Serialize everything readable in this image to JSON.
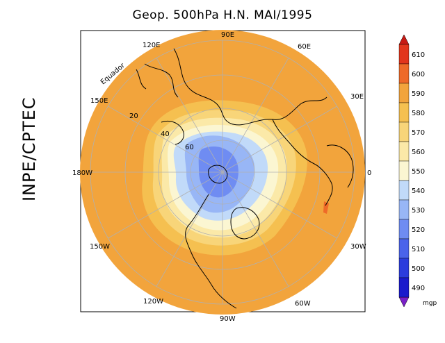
{
  "title": "Geop. 500hPa H.N. MAI/1995",
  "side_label": "INPE/CPTEC",
  "unit": "mgp",
  "equator_label": "Equador",
  "longitude_labels": [
    "90E",
    "60E",
    "30E",
    "0",
    "30W",
    "60W",
    "90W",
    "120W",
    "150W",
    "180W",
    "150E",
    "120E"
  ],
  "latitude_labels": [
    "20",
    "40",
    "60"
  ],
  "colorbar": {
    "levels": [
      "490",
      "500",
      "510",
      "520",
      "530",
      "540",
      "550",
      "560",
      "570",
      "580",
      "590",
      "600",
      "610"
    ],
    "colors": [
      "#1a1acc",
      "#2b3cdd",
      "#4a63ea",
      "#6f8cf2",
      "#98b6f6",
      "#c1daf9",
      "#fbf6d2",
      "#fbe9a8",
      "#f8d579",
      "#f5c050",
      "#f2a43c",
      "#ee6a28",
      "#e2351c"
    ],
    "low_color": "#7a1fc8",
    "high_color": "#c81a14"
  },
  "colors": {
    "ocean_field": "#f2a43c",
    "field_580": "#f5c050",
    "field_570": "#f8d579",
    "field_560": "#fbe9a8",
    "field_550": "#fbf6d2",
    "field_540": "#c1daf9",
    "field_530": "#98b6f6",
    "field_520": "#6f8cf2",
    "anomaly_red": "#ee6a28"
  }
}
